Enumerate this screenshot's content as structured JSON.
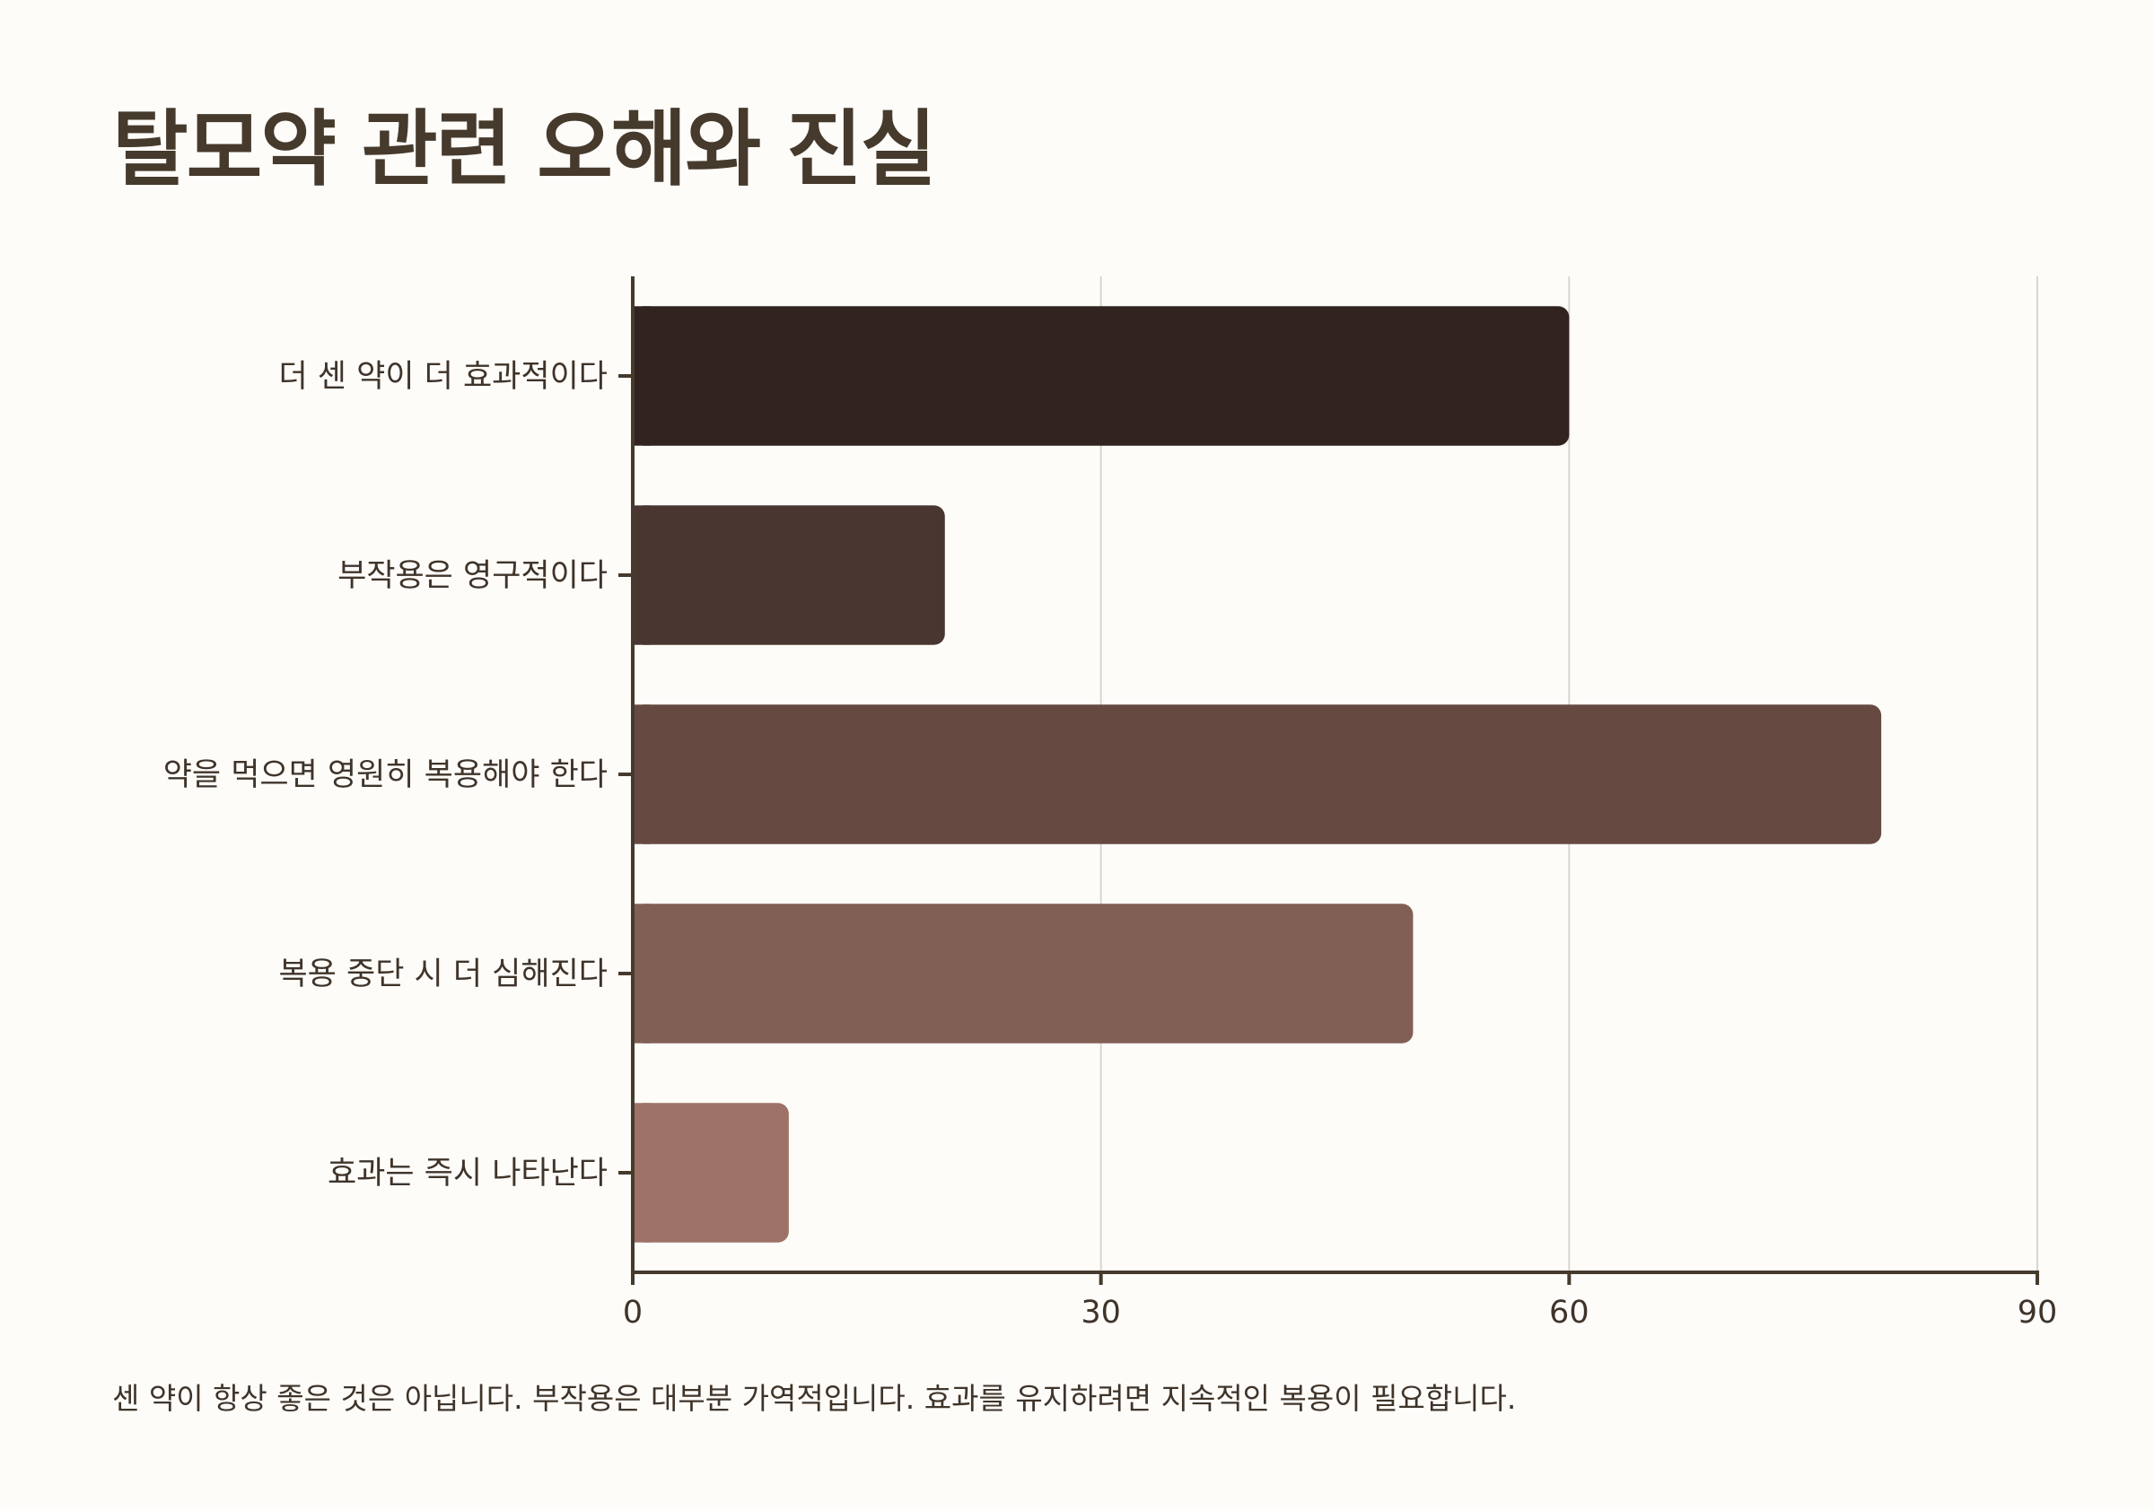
{
  "chart_data": {
    "type": "bar",
    "orientation": "horizontal",
    "title": "탈모약 관련 오해와 진실",
    "categories": [
      "더 센 약이 더 효과적이다",
      "부작용은 영구적이다",
      "약을 먹으면 영원히 복용해야 한다",
      "복용 중단 시 더 심해진다",
      "효과는 즉시 나타난다"
    ],
    "values": [
      60,
      20,
      80,
      50,
      10
    ],
    "colors": [
      "#31231f",
      "#4a3630",
      "#664a42",
      "#825f55",
      "#9e7266"
    ],
    "xlim": [
      0,
      90
    ],
    "xticks": [
      "0",
      "30",
      "60",
      "90"
    ],
    "xlabel": "",
    "ylabel": "",
    "grid": "vertical",
    "footnote": "센 약이 항상 좋은 것은 아닙니다. 부작용은 대부분 가역적입니다. 효과를 유지하려면 지속적인 복용이 필요합니다."
  }
}
